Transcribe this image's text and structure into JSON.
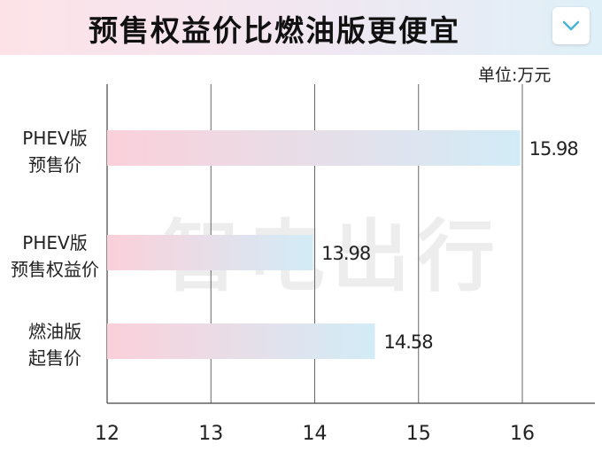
{
  "header": {
    "title": "预售权益价比燃油版更便宜"
  },
  "unit_label": "单位:万元",
  "watermark": "智电出行",
  "colors": {
    "bar_start": "#fbd0da",
    "bar_end": "#d2ecf7",
    "axis": "#444444",
    "grid": "#666666"
  },
  "chart_data": {
    "type": "bar",
    "orientation": "horizontal",
    "title": "预售权益价比燃油版更便宜",
    "unit": "单位:万元",
    "categories": [
      [
        "PHEV版",
        "预售价"
      ],
      [
        "PHEV版",
        "预售权益价"
      ],
      [
        "燃油版",
        "起售价"
      ]
    ],
    "values": [
      15.98,
      13.98,
      14.58
    ],
    "value_labels": [
      "15.98",
      "13.98",
      "14.58"
    ],
    "xlim": [
      12,
      16
    ],
    "ticks": [
      12,
      13,
      14,
      15,
      16
    ],
    "tick_labels": [
      "12",
      "13",
      "14",
      "15",
      "16"
    ],
    "grid": true,
    "legend": "none"
  }
}
